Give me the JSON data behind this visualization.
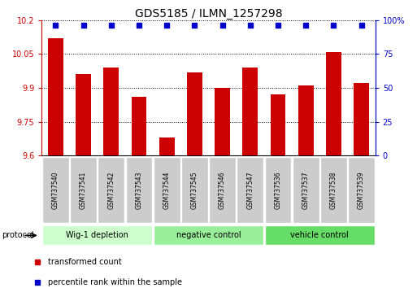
{
  "title": "GDS5185 / ILMN_1257298",
  "samples": [
    "GSM737540",
    "GSM737541",
    "GSM737542",
    "GSM737543",
    "GSM737544",
    "GSM737545",
    "GSM737546",
    "GSM737547",
    "GSM737536",
    "GSM737537",
    "GSM737538",
    "GSM737539"
  ],
  "red_values": [
    10.12,
    9.96,
    9.99,
    9.86,
    9.68,
    9.97,
    9.9,
    9.99,
    9.87,
    9.91,
    10.06,
    9.92
  ],
  "blue_values_pct": [
    100,
    100,
    100,
    100,
    100,
    100,
    100,
    100,
    100,
    100,
    100,
    100
  ],
  "ylim_left": [
    9.6,
    10.2
  ],
  "ylim_right": [
    0,
    100
  ],
  "yticks_left": [
    9.6,
    9.75,
    9.9,
    10.05,
    10.2
  ],
  "yticks_right": [
    0,
    25,
    50,
    75,
    100
  ],
  "ytick_labels_left": [
    "9.6",
    "9.75",
    "9.9",
    "10.05",
    "10.2"
  ],
  "ytick_labels_right": [
    "0",
    "25",
    "50",
    "75",
    "100%"
  ],
  "groups": [
    {
      "label": "Wig-1 depletion",
      "start": 0,
      "end": 4,
      "color": "#ccffcc"
    },
    {
      "label": "negative control",
      "start": 4,
      "end": 8,
      "color": "#99ee99"
    },
    {
      "label": "vehicle control",
      "start": 8,
      "end": 12,
      "color": "#66dd66"
    }
  ],
  "protocol_label": "protocol",
  "bar_color": "#cc0000",
  "blue_marker_color": "#0000cc",
  "bar_width": 0.55,
  "grid_color": "#000000",
  "cell_color": "#cccccc",
  "legend_red_label": "transformed count",
  "legend_blue_label": "percentile rank within the sample"
}
